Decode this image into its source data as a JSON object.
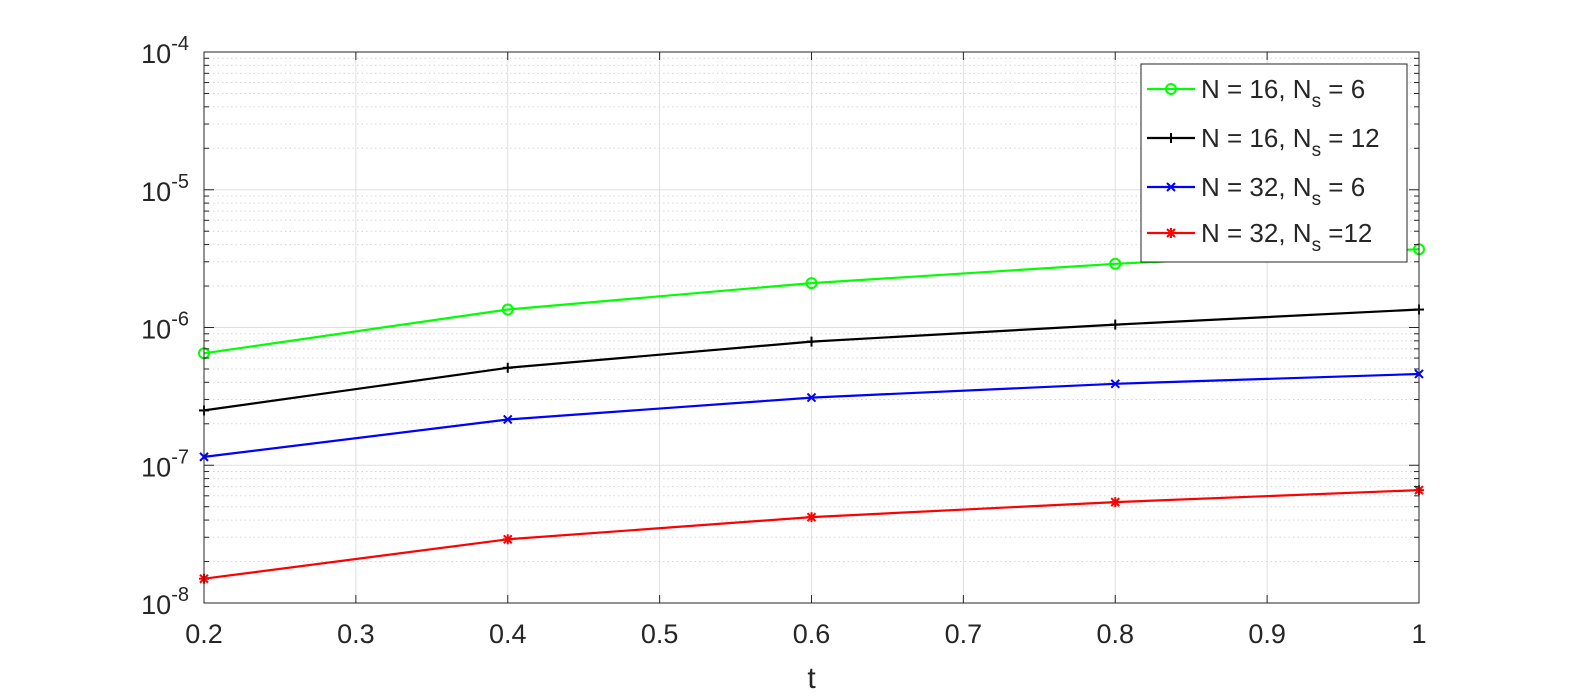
{
  "chart_data": {
    "type": "line",
    "title": "",
    "xlabel": "t",
    "ylabel": "",
    "xlim": [
      0.2,
      1
    ],
    "ylim": [
      1e-08,
      0.0001
    ],
    "yscale": "log",
    "grid": true,
    "minor_grid": true,
    "legend_position": "top-right",
    "x": [
      0.2,
      0.4,
      0.6,
      0.8,
      1.0
    ],
    "x_ticks": [
      "0.2",
      "0.3",
      "0.4",
      "0.5",
      "0.6",
      "0.7",
      "0.8",
      "0.9",
      "1"
    ],
    "y_ticks": [
      {
        "base": "10",
        "exp": "-4"
      },
      {
        "base": "10",
        "exp": "-5"
      },
      {
        "base": "10",
        "exp": "-6"
      },
      {
        "base": "10",
        "exp": "-7"
      },
      {
        "base": "10",
        "exp": "-8"
      }
    ],
    "series": [
      {
        "name_main": "N = 16, N",
        "name_sub": "s",
        "name_tail": " = 6",
        "color": "#00ff00",
        "marker": "circle",
        "values": [
          6.5e-07,
          1.35e-06,
          2.1e-06,
          2.9e-06,
          3.7e-06
        ]
      },
      {
        "name_main": "N = 16, N",
        "name_sub": "s",
        "name_tail": " = 12",
        "color": "#000000",
        "marker": "plus",
        "values": [
          2.5e-07,
          5.1e-07,
          7.9e-07,
          1.05e-06,
          1.35e-06
        ]
      },
      {
        "name_main": "N = 32, N",
        "name_sub": "s",
        "name_tail": " = 6",
        "color": "#0000ff",
        "marker": "x",
        "values": [
          1.15e-07,
          2.15e-07,
          3.1e-07,
          3.9e-07,
          4.6e-07
        ]
      },
      {
        "name_main": "N = 32, N",
        "name_sub": "s",
        "name_tail": " =12",
        "color": "#ff0000",
        "marker": "asterisk",
        "values": [
          1.5e-08,
          2.9e-08,
          4.2e-08,
          5.4e-08,
          6.6e-08
        ]
      }
    ]
  }
}
